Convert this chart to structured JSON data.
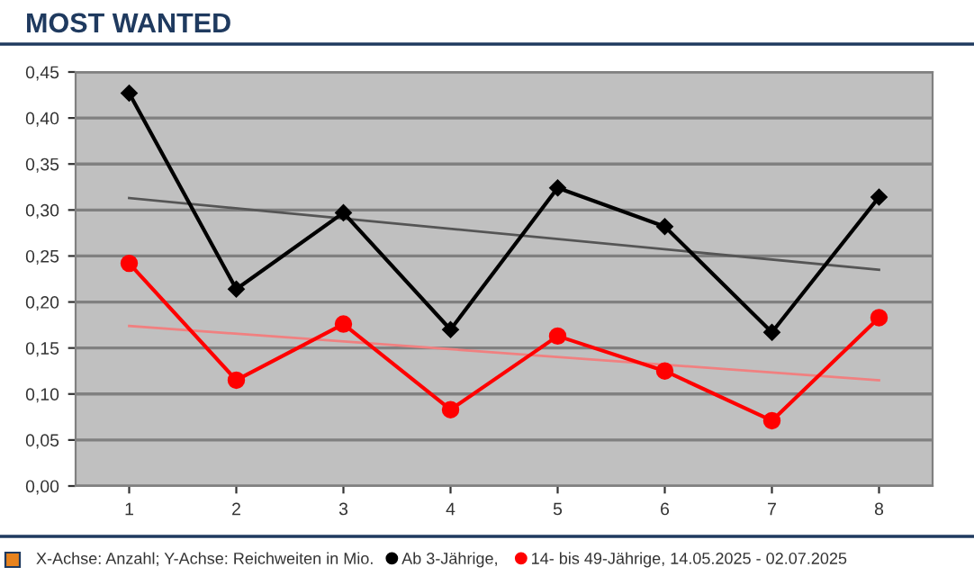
{
  "chart_data": {
    "type": "line",
    "title": "MOST WANTED",
    "categories": [
      "1",
      "2",
      "3",
      "4",
      "5",
      "6",
      "7",
      "8"
    ],
    "series": [
      {
        "name": "Ab 3-Jährige,",
        "color": "#000000",
        "marker": "diamond",
        "values": [
          0.427,
          0.214,
          0.297,
          0.17,
          0.324,
          0.282,
          0.167,
          0.314
        ]
      },
      {
        "name": "14- bis 49-Jährige, 14.05.2025 - 02.07.2025",
        "color": "#ff0000",
        "marker": "circle",
        "values": [
          0.242,
          0.115,
          0.176,
          0.083,
          0.163,
          0.125,
          0.071,
          0.183
        ]
      },
      {
        "type": "line",
        "color": "#555555",
        "marker": "none",
        "x": [
          "1",
          "8"
        ],
        "values": [
          0.313,
          0.235
        ]
      },
      {
        "type": "line",
        "color": "#f08080",
        "marker": "none",
        "x": [
          "1",
          "8"
        ],
        "values": [
          0.174,
          0.115
        ]
      }
    ],
    "ylim": [
      0,
      0.45
    ],
    "yticks": [
      {
        "value": 0,
        "label": "0,00"
      },
      {
        "value": 0.05,
        "label": "0,05"
      },
      {
        "value": 0.1,
        "label": "0,10"
      },
      {
        "value": 0.15,
        "label": "0,15"
      },
      {
        "value": 0.2,
        "label": "0,20"
      },
      {
        "value": 0.25,
        "label": "0,25"
      },
      {
        "value": 0.3,
        "label": "0,30"
      },
      {
        "value": 0.35,
        "label": "0,35"
      },
      {
        "value": 0.4,
        "label": "0,40"
      },
      {
        "value": 0.45,
        "label": "0,45"
      }
    ],
    "grid": "y",
    "legend": "bottom",
    "annotations": [
      "X-Achse: Anzahl; Y-Achse: Reichweiten in Mio."
    ]
  }
}
